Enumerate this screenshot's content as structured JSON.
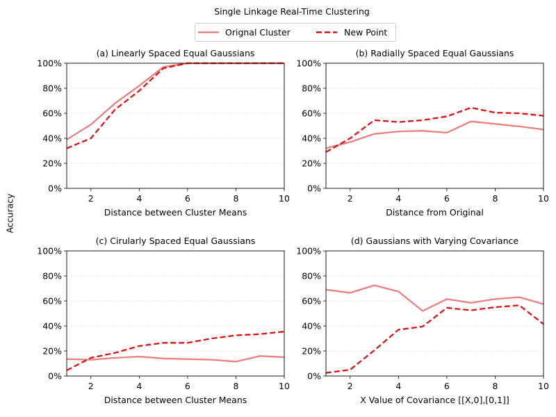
{
  "figure": {
    "suptitle": "Single Linkage Real-Time Clustering",
    "ylabel": "Accuracy",
    "legend": [
      {
        "name": "Orignal Cluster",
        "color": "#e88080",
        "style": "solid"
      },
      {
        "name": "New Point",
        "color": "#dd1111",
        "style": "dashed"
      }
    ]
  },
  "chart_data": [
    {
      "type": "line",
      "title": "(a) Linearly Spaced Equal Gaussians",
      "xlabel": "Distance between Cluster Means",
      "ylabel": "Accuracy",
      "xlim": [
        1,
        10
      ],
      "ylim": [
        0,
        100
      ],
      "xticks": [
        "2",
        "4",
        "6",
        "8",
        "10"
      ],
      "yticks": [
        "0%",
        "20%",
        "40%",
        "60%",
        "80%",
        "100%"
      ],
      "grid": "horizontal dotted",
      "x": [
        1,
        2,
        3,
        4,
        5,
        6,
        7,
        8,
        9,
        10
      ],
      "series": [
        {
          "name": "Orignal Cluster",
          "values": [
            39,
            51,
            68,
            82,
            97,
            100,
            100,
            100,
            100,
            100
          ]
        },
        {
          "name": "New Point",
          "values": [
            32,
            40,
            63,
            78,
            96,
            100,
            100,
            100,
            100,
            100
          ]
        }
      ]
    },
    {
      "type": "line",
      "title": "(b) Radially Spaced Equal Gaussians",
      "xlabel": "Distance from Original",
      "ylabel": "Accuracy",
      "xlim": [
        1,
        10
      ],
      "ylim": [
        0,
        100
      ],
      "xticks": [
        "2",
        "4",
        "6",
        "8",
        "10"
      ],
      "yticks": [
        "0%",
        "20%",
        "40%",
        "60%",
        "80%",
        "100%"
      ],
      "grid": "horizontal dotted",
      "x": [
        1,
        2,
        3,
        4,
        5,
        6,
        7,
        8,
        9,
        10
      ],
      "series": [
        {
          "name": "Orignal Cluster",
          "values": [
            32,
            37,
            43.5,
            45.5,
            46,
            44.5,
            53.5,
            51.5,
            49.5,
            47
          ]
        },
        {
          "name": "New Point",
          "values": [
            29,
            40,
            54.5,
            53,
            54.5,
            57.5,
            64.5,
            60.5,
            60,
            58
          ]
        }
      ]
    },
    {
      "type": "line",
      "title": "(c) Cirularly Spaced Equal Gaussians",
      "xlabel": "Distance between Cluster Means",
      "ylabel": "Accuracy",
      "xlim": [
        1,
        10
      ],
      "ylim": [
        0,
        100
      ],
      "xticks": [
        "2",
        "4",
        "6",
        "8",
        "10"
      ],
      "yticks": [
        "0%",
        "20%",
        "40%",
        "60%",
        "80%",
        "100%"
      ],
      "grid": "horizontal dotted",
      "x": [
        1,
        2,
        3,
        4,
        5,
        6,
        7,
        8,
        9,
        10
      ],
      "series": [
        {
          "name": "Orignal Cluster",
          "values": [
            13.5,
            13,
            14.5,
            15.5,
            14,
            13.5,
            13,
            11.5,
            16,
            15
          ]
        },
        {
          "name": "New Point",
          "values": [
            4.5,
            14.5,
            18.5,
            24,
            26.5,
            26.5,
            30,
            32.5,
            33.5,
            35.5
          ]
        }
      ]
    },
    {
      "type": "line",
      "title": "(d) Gaussians with Varying Covariance",
      "xlabel": "X Value of Covariance [[X,0],[0,1]]",
      "ylabel": "Accuracy",
      "xlim": [
        1,
        10
      ],
      "ylim": [
        0,
        100
      ],
      "xticks": [
        "2",
        "4",
        "6",
        "8",
        "10"
      ],
      "yticks": [
        "0%",
        "20%",
        "40%",
        "60%",
        "80%",
        "100%"
      ],
      "grid": "horizontal dotted",
      "x": [
        1,
        2,
        3,
        4,
        5,
        6,
        7,
        8,
        9,
        10
      ],
      "series": [
        {
          "name": "Orignal Cluster",
          "values": [
            69,
            66.5,
            72.5,
            67.5,
            52,
            61.5,
            58.5,
            61.5,
            63,
            57.5
          ]
        },
        {
          "name": "New Point",
          "values": [
            2.5,
            5,
            20.5,
            37,
            39.5,
            54.5,
            52.5,
            55,
            56.5,
            41.5
          ]
        }
      ]
    }
  ]
}
